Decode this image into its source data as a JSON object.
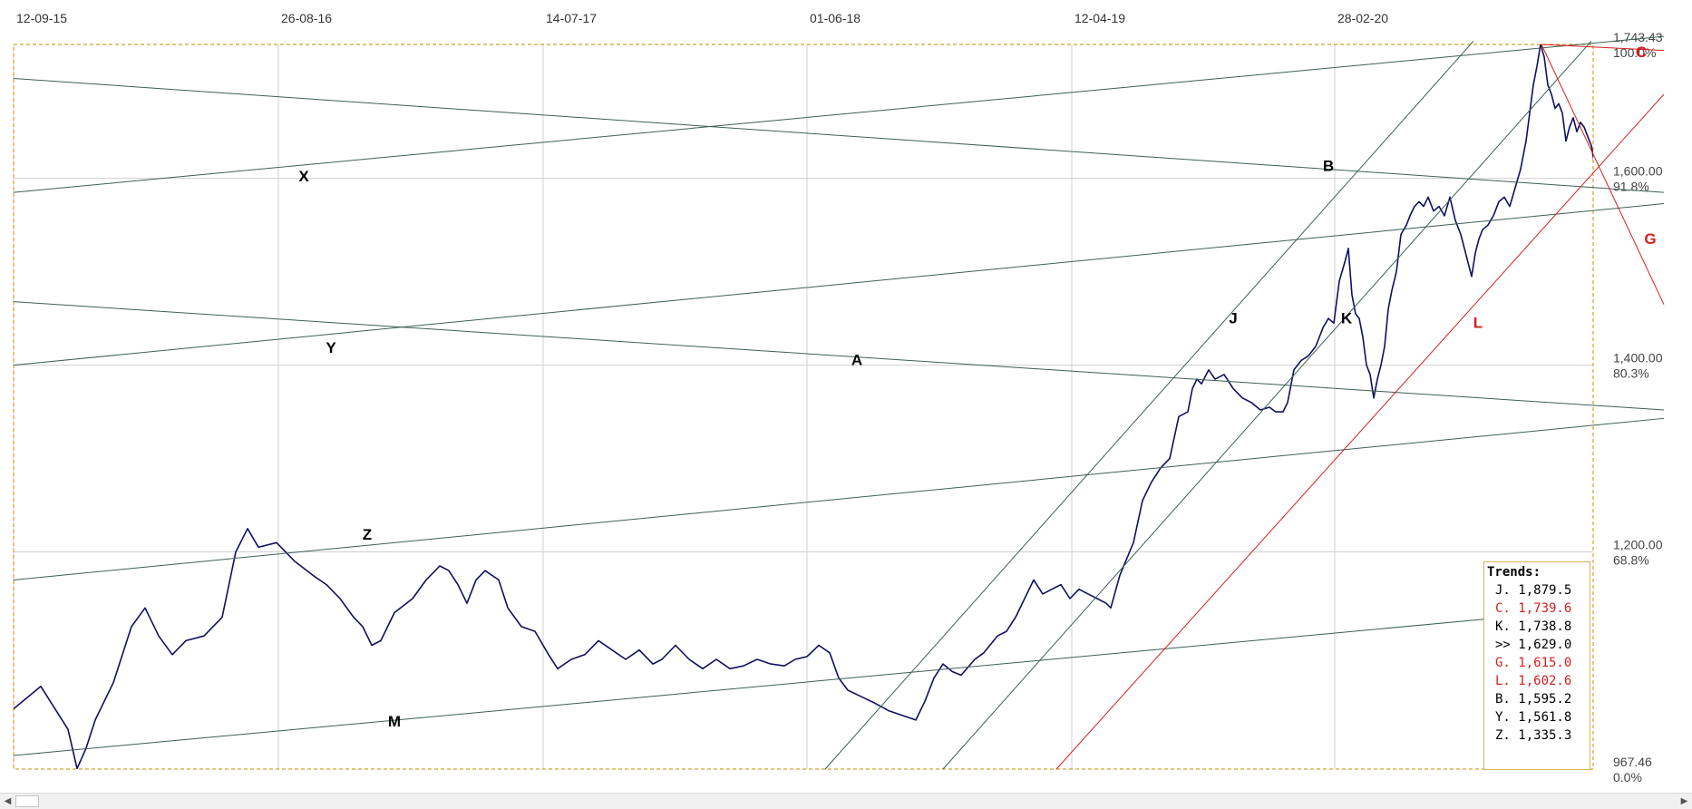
{
  "chart_data": {
    "type": "line",
    "x_dates": [
      "12-09-15",
      "26-08-16",
      "14-07-17",
      "01-06-18",
      "12-04-19",
      "28-02-20"
    ],
    "y_ticks": [
      "1,743.43",
      "1,600.00",
      "1,400.00",
      "1,200.00",
      "967.46"
    ],
    "y_range": [
      967.46,
      1743.43
    ],
    "pct_ticks": [
      "100.0%",
      "91.8%",
      "80.3%",
      "68.8%",
      "0.0%"
    ],
    "grid": true,
    "colors": {
      "price": "#101060",
      "trend_line": "#3f5f56",
      "trend_red": "#d42020",
      "frame": "#d4a128",
      "grid": "#d0d0d0"
    },
    "series": [
      {
        "points": [
          [
            0,
            1032
          ],
          [
            30,
            1056
          ],
          [
            60,
            1010
          ],
          [
            70,
            968
          ],
          [
            80,
            990
          ],
          [
            90,
            1020
          ],
          [
            110,
            1060
          ],
          [
            130,
            1120
          ],
          [
            145,
            1140
          ],
          [
            160,
            1110
          ],
          [
            175,
            1090
          ],
          [
            190,
            1105
          ],
          [
            210,
            1110
          ],
          [
            230,
            1130
          ],
          [
            245,
            1200
          ],
          [
            258,
            1225
          ],
          [
            270,
            1205
          ],
          [
            290,
            1210
          ],
          [
            310,
            1190
          ],
          [
            330,
            1175
          ],
          [
            345,
            1165
          ],
          [
            360,
            1150
          ],
          [
            375,
            1130
          ],
          [
            385,
            1120
          ],
          [
            395,
            1100
          ],
          [
            405,
            1105
          ],
          [
            420,
            1135
          ],
          [
            440,
            1150
          ],
          [
            455,
            1170
          ],
          [
            470,
            1185
          ],
          [
            480,
            1180
          ],
          [
            490,
            1165
          ],
          [
            500,
            1145
          ],
          [
            510,
            1170
          ],
          [
            520,
            1180
          ],
          [
            535,
            1170
          ],
          [
            545,
            1140
          ],
          [
            560,
            1120
          ],
          [
            575,
            1115
          ],
          [
            590,
            1090
          ],
          [
            600,
            1075
          ],
          [
            615,
            1085
          ],
          [
            630,
            1090
          ],
          [
            645,
            1105
          ],
          [
            660,
            1095
          ],
          [
            675,
            1085
          ],
          [
            690,
            1095
          ],
          [
            705,
            1080
          ],
          [
            715,
            1085
          ],
          [
            730,
            1100
          ],
          [
            745,
            1085
          ],
          [
            760,
            1075
          ],
          [
            775,
            1085
          ],
          [
            790,
            1075
          ],
          [
            805,
            1078
          ],
          [
            820,
            1085
          ],
          [
            835,
            1080
          ],
          [
            850,
            1078
          ],
          [
            862,
            1085
          ],
          [
            875,
            1088
          ],
          [
            888,
            1100
          ],
          [
            900,
            1092
          ],
          [
            910,
            1065
          ],
          [
            920,
            1052
          ],
          [
            935,
            1045
          ],
          [
            950,
            1038
          ],
          [
            965,
            1030
          ],
          [
            980,
            1025
          ],
          [
            995,
            1020
          ],
          [
            1005,
            1040
          ],
          [
            1015,
            1065
          ],
          [
            1025,
            1080
          ],
          [
            1035,
            1072
          ],
          [
            1045,
            1068
          ],
          [
            1060,
            1085
          ],
          [
            1070,
            1092
          ],
          [
            1085,
            1110
          ],
          [
            1095,
            1115
          ],
          [
            1105,
            1130
          ],
          [
            1115,
            1150
          ],
          [
            1125,
            1170
          ],
          [
            1135,
            1155
          ],
          [
            1145,
            1160
          ],
          [
            1155,
            1165
          ],
          [
            1165,
            1150
          ],
          [
            1175,
            1160
          ],
          [
            1185,
            1155
          ],
          [
            1195,
            1150
          ],
          [
            1205,
            1145
          ],
          [
            1210,
            1140
          ],
          [
            1220,
            1175
          ],
          [
            1235,
            1210
          ],
          [
            1245,
            1255
          ],
          [
            1255,
            1275
          ],
          [
            1265,
            1290
          ],
          [
            1275,
            1300
          ],
          [
            1285,
            1345
          ],
          [
            1295,
            1350
          ],
          [
            1300,
            1375
          ],
          [
            1305,
            1385
          ],
          [
            1310,
            1380
          ],
          [
            1318,
            1395
          ],
          [
            1325,
            1385
          ],
          [
            1335,
            1390
          ],
          [
            1345,
            1375
          ],
          [
            1355,
            1365
          ],
          [
            1365,
            1360
          ],
          [
            1375,
            1352
          ],
          [
            1385,
            1355
          ],
          [
            1392,
            1350
          ],
          [
            1400,
            1350
          ],
          [
            1405,
            1360
          ],
          [
            1412,
            1395
          ],
          [
            1420,
            1405
          ],
          [
            1428,
            1410
          ],
          [
            1436,
            1420
          ],
          [
            1444,
            1440
          ],
          [
            1450,
            1450
          ],
          [
            1456,
            1445
          ],
          [
            1462,
            1490
          ],
          [
            1468,
            1510
          ],
          [
            1472,
            1525
          ],
          [
            1476,
            1475
          ],
          [
            1480,
            1455
          ],
          [
            1484,
            1450
          ],
          [
            1488,
            1430
          ],
          [
            1492,
            1400
          ],
          [
            1496,
            1390
          ],
          [
            1500,
            1365
          ],
          [
            1504,
            1385
          ],
          [
            1508,
            1400
          ],
          [
            1512,
            1420
          ],
          [
            1516,
            1460
          ],
          [
            1520,
            1480
          ],
          [
            1525,
            1500
          ],
          [
            1530,
            1540
          ],
          [
            1536,
            1550
          ],
          [
            1540,
            1560
          ],
          [
            1545,
            1570
          ],
          [
            1550,
            1575
          ],
          [
            1555,
            1570
          ],
          [
            1560,
            1580
          ],
          [
            1566,
            1565
          ],
          [
            1572,
            1570
          ],
          [
            1578,
            1560
          ],
          [
            1584,
            1580
          ],
          [
            1590,
            1555
          ],
          [
            1596,
            1540
          ],
          [
            1600,
            1525
          ],
          [
            1604,
            1510
          ],
          [
            1608,
            1495
          ],
          [
            1612,
            1520
          ],
          [
            1616,
            1535
          ],
          [
            1620,
            1545
          ],
          [
            1626,
            1550
          ],
          [
            1632,
            1560
          ],
          [
            1638,
            1575
          ],
          [
            1644,
            1580
          ],
          [
            1650,
            1570
          ],
          [
            1656,
            1590
          ],
          [
            1662,
            1610
          ],
          [
            1668,
            1640
          ],
          [
            1672,
            1670
          ],
          [
            1676,
            1700
          ],
          [
            1680,
            1720
          ],
          [
            1684,
            1743.43
          ],
          [
            1688,
            1730
          ],
          [
            1692,
            1700
          ],
          [
            1696,
            1690
          ],
          [
            1700,
            1675
          ],
          [
            1704,
            1680
          ],
          [
            1708,
            1670
          ],
          [
            1712,
            1640
          ],
          [
            1716,
            1655
          ],
          [
            1720,
            1665
          ],
          [
            1724,
            1650
          ],
          [
            1728,
            1660
          ],
          [
            1732,
            1655
          ],
          [
            1736,
            1645
          ],
          [
            1740,
            1635
          ],
          [
            1744,
            1612
          ],
          [
            1748,
            1608
          ],
          [
            1752,
            1620
          ],
          [
            1756,
            1615
          ],
          [
            1760,
            1625
          ],
          [
            1764,
            1610
          ]
        ]
      }
    ],
    "trend_lines": [
      {
        "id": "X",
        "label": "X",
        "color": "trend_line",
        "from": [
          0,
          1585
        ],
        "to": [
          1820,
          1752
        ],
        "label_pos": [
          320,
          1597
        ]
      },
      {
        "id": "B",
        "label": "B",
        "color": "trend_line",
        "from": [
          0,
          1707
        ],
        "to": [
          1820,
          1585
        ],
        "label_pos": [
          1450,
          1608
        ]
      },
      {
        "id": "Y",
        "label": "Y",
        "color": "trend_line",
        "from": [
          0,
          1400
        ],
        "to": [
          1820,
          1573
        ],
        "label_pos": [
          350,
          1413
        ]
      },
      {
        "id": "A",
        "label": "A",
        "color": "trend_line",
        "from": [
          0,
          1468
        ],
        "to": [
          1820,
          1352
        ],
        "label_pos": [
          930,
          1400
        ]
      },
      {
        "id": "Z",
        "label": "Z",
        "color": "trend_line",
        "from": [
          0,
          1170
        ],
        "to": [
          1820,
          1343
        ],
        "label_pos": [
          390,
          1213
        ]
      },
      {
        "id": "M",
        "label": "M",
        "color": "trend_line",
        "from": [
          0,
          982
        ],
        "to": [
          1700,
          1135
        ],
        "label_pos": [
          420,
          1013
        ]
      },
      {
        "id": "J",
        "label": "J",
        "color": "trend_line",
        "from": [
          895,
          967.46
        ],
        "to": [
          1610,
          1747
        ],
        "label_pos": [
          1345,
          1445
        ]
      },
      {
        "id": "K",
        "label": "K",
        "color": "trend_line",
        "from": [
          1025,
          967.46
        ],
        "to": [
          1740,
          1747
        ],
        "label_pos": [
          1470,
          1445
        ]
      },
      {
        "id": "L",
        "label": "L",
        "color": "trend_red",
        "from": [
          1150,
          967.46
        ],
        "to": [
          1820,
          1690
        ],
        "label_pos": [
          1615,
          1440
        ]
      },
      {
        "id": "C",
        "label": "C",
        "color": "trend_red",
        "from": [
          1685,
          1743.43
        ],
        "to": [
          1820,
          1737
        ],
        "label_pos": [
          1795,
          1730
        ]
      },
      {
        "id": "G",
        "label": "G",
        "color": "trend_red",
        "from": [
          1685,
          1743.43
        ],
        "to": [
          1820,
          1465
        ],
        "label_pos": [
          1805,
          1530
        ]
      }
    ]
  },
  "trends_panel": {
    "title": "Trends:",
    "rows": [
      {
        "text": "J. 1,879.5",
        "color": "#000000"
      },
      {
        "text": "C. 1,739.6",
        "color": "#d42020"
      },
      {
        "text": "K. 1,738.8",
        "color": "#000000"
      },
      {
        "text": ">> 1,629.0",
        "color": "#000000"
      },
      {
        "text": "G. 1,615.0",
        "color": "#d42020"
      },
      {
        "text": "L. 1,602.6",
        "color": "#d42020"
      },
      {
        "text": "B. 1,595.2",
        "color": "#000000"
      },
      {
        "text": "Y. 1,561.8",
        "color": "#000000"
      },
      {
        "text": "Z. 1,335.3",
        "color": "#000000"
      }
    ]
  },
  "scrollbar": {
    "left_arrow": "◀",
    "right_arrow": "▶"
  }
}
